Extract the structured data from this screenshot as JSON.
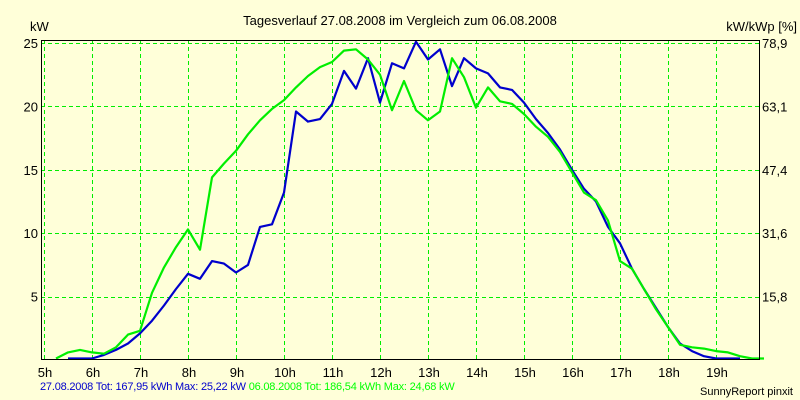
{
  "chart_data": {
    "type": "line",
    "title": "Tagesverlauf 27.08.2008 im Vergleich zum 06.08.2008",
    "ylabel": "kW",
    "ylabel_right": "kW/kWp [%]",
    "xlabel": "",
    "xlim": [
      5,
      20
    ],
    "ylim": [
      0,
      25
    ],
    "ylim_right": [
      0,
      78.9
    ],
    "grid": true,
    "x_ticks": [
      "5h",
      "6h",
      "7h",
      "8h",
      "9h",
      "10h",
      "11h",
      "12h",
      "13h",
      "14h",
      "15h",
      "16h",
      "17h",
      "18h",
      "19h"
    ],
    "y_ticks": [
      "5",
      "10",
      "15",
      "20",
      "25"
    ],
    "y_ticks_right": [
      "15,8",
      "31,6",
      "47,4",
      "63,1",
      "78,9"
    ],
    "x": [
      5.0,
      5.25,
      5.5,
      5.75,
      6.0,
      6.25,
      6.5,
      6.75,
      7.0,
      7.25,
      7.5,
      7.75,
      8.0,
      8.25,
      8.5,
      8.75,
      9.0,
      9.25,
      9.5,
      9.75,
      10.0,
      10.25,
      10.5,
      10.75,
      11.0,
      11.25,
      11.5,
      11.75,
      12.0,
      12.25,
      12.5,
      12.75,
      13.0,
      13.25,
      13.5,
      13.75,
      14.0,
      14.25,
      14.5,
      14.75,
      15.0,
      15.25,
      15.5,
      15.75,
      16.0,
      16.25,
      16.5,
      16.75,
      17.0,
      17.25,
      17.5,
      17.75,
      18.0,
      18.25,
      18.5,
      18.75,
      19.0,
      19.25,
      19.5,
      19.75,
      20.0
    ],
    "series": [
      {
        "name": "27.08.2008",
        "color": "#0000cc",
        "values": [
          null,
          null,
          0.0,
          0.0,
          0.1,
          0.4,
          0.8,
          1.3,
          2.1,
          3.1,
          4.3,
          5.6,
          6.8,
          6.4,
          7.8,
          7.6,
          6.9,
          7.5,
          10.5,
          10.7,
          13.2,
          19.6,
          18.8,
          19.0,
          20.2,
          22.8,
          21.4,
          23.8,
          20.3,
          23.4,
          23.0,
          25.1,
          23.7,
          24.5,
          21.6,
          23.8,
          23.0,
          22.6,
          21.5,
          21.3,
          20.3,
          19.0,
          17.9,
          16.6,
          15.0,
          13.5,
          12.5,
          10.5,
          9.2,
          7.2,
          5.6,
          4.1,
          2.6,
          1.3,
          0.7,
          0.3,
          0.1,
          0.0,
          0.0,
          null,
          null
        ]
      },
      {
        "name": "06.08.2008",
        "color": "#00ee00",
        "values": [
          null,
          0.0,
          0.6,
          0.8,
          0.6,
          0.5,
          1.0,
          2.0,
          2.3,
          5.3,
          7.3,
          8.9,
          10.3,
          8.7,
          14.4,
          15.5,
          16.5,
          17.8,
          18.9,
          19.8,
          20.5,
          21.5,
          22.4,
          23.1,
          23.5,
          24.4,
          24.5,
          23.7,
          22.5,
          19.7,
          22.0,
          19.7,
          18.9,
          19.6,
          23.8,
          22.3,
          19.9,
          21.5,
          20.4,
          20.2,
          19.4,
          18.4,
          17.6,
          16.4,
          14.8,
          13.2,
          12.6,
          11.0,
          7.8,
          7.2,
          5.6,
          4.0,
          2.6,
          1.2,
          1.0,
          0.9,
          0.7,
          0.6,
          0.3,
          0.0,
          0.0
        ]
      }
    ],
    "legend": [
      {
        "text": "27.08.2008 Tot: 167,95 kWh Max: 25,22 kW",
        "color": "#0000cc"
      },
      {
        "text": "06.08.2008 Tot: 186,54 kWh Max: 24,68 kW",
        "color": "#00ff00"
      }
    ],
    "legend_placement": "bottom-left"
  },
  "footer": {
    "credit": "SunnyReport pinxit"
  }
}
